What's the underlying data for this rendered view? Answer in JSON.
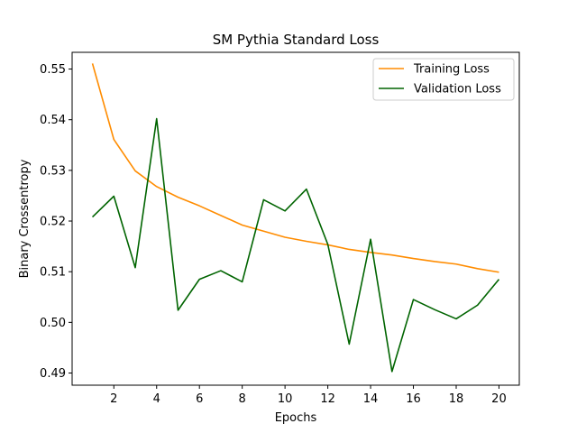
{
  "chart_data": {
    "type": "line",
    "title": "SM Pythia Standard Loss",
    "xlabel": "Epochs",
    "ylabel": "Binary Crossentropy",
    "xlim": [
      0.05,
      20.95
    ],
    "ylim": [
      0.4876,
      0.5533
    ],
    "xticks": [
      2,
      4,
      6,
      8,
      10,
      12,
      14,
      16,
      18,
      20
    ],
    "yticks": [
      0.49,
      0.5,
      0.51,
      0.52,
      0.53,
      0.54,
      0.55
    ],
    "ytick_labels": [
      "0.49",
      "0.50",
      "0.51",
      "0.52",
      "0.53",
      "0.54",
      "0.55"
    ],
    "legend_position": "top-right",
    "grid": false,
    "x": [
      1,
      2,
      3,
      4,
      5,
      6,
      7,
      8,
      9,
      10,
      11,
      12,
      13,
      14,
      15,
      16,
      17,
      18,
      19,
      20
    ],
    "series": [
      {
        "name": "Training Loss",
        "color": "#ff8c00",
        "values": [
          0.5511,
          0.5361,
          0.5299,
          0.5268,
          0.5247,
          0.523,
          0.5211,
          0.5192,
          0.518,
          0.5168,
          0.516,
          0.5153,
          0.5144,
          0.5138,
          0.5133,
          0.5126,
          0.512,
          0.5115,
          0.5106,
          0.5099
        ]
      },
      {
        "name": "Validation Loss",
        "color": "#006400",
        "values": [
          0.5208,
          0.5249,
          0.5108,
          0.5402,
          0.5024,
          0.5085,
          0.5102,
          0.508,
          0.5242,
          0.522,
          0.5263,
          0.5154,
          0.4957,
          0.5164,
          0.4903,
          0.5045,
          0.5025,
          0.5007,
          0.5034,
          0.5085
        ]
      }
    ]
  }
}
